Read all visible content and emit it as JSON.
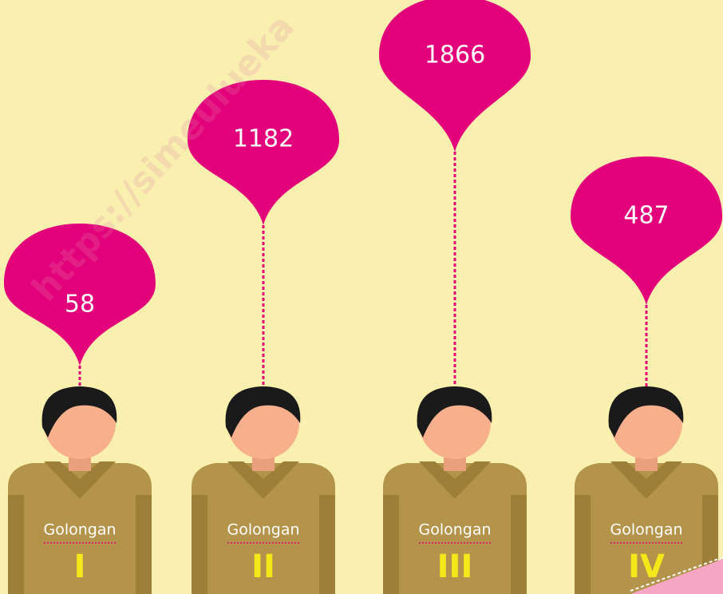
{
  "watermark": "https://simeulueka",
  "items": [
    {
      "value": "58",
      "label": "Golongan",
      "grade": "I"
    },
    {
      "value": "1182",
      "label": "Golongan",
      "grade": "II"
    },
    {
      "value": "1866",
      "label": "Golongan",
      "grade": "III"
    },
    {
      "value": "487",
      "label": "Golongan",
      "grade": "IV"
    }
  ]
}
